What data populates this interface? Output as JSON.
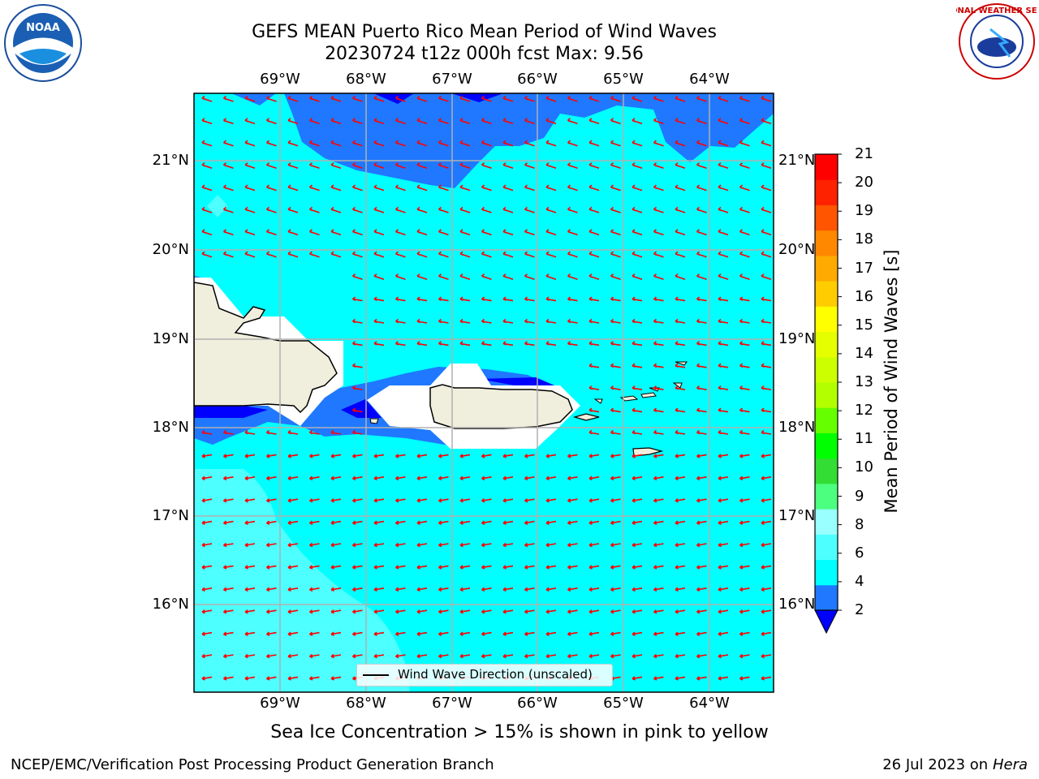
{
  "header": {
    "title": "GEFS MEAN Puerto Rico Mean Period of Wind Waves",
    "subtitle": "20230724 t12z 000h fcst   Max: 9.56"
  },
  "logos": {
    "noaa": {
      "text": "NOAA",
      "icon": "noaa-logo"
    },
    "nws": {
      "text": "NATIONAL WEATHER SERVICE",
      "icon": "nws-logo"
    }
  },
  "map": {
    "lon_labels": [
      "69°W",
      "68°W",
      "67°W",
      "66°W",
      "65°W",
      "64°W"
    ],
    "lat_labels": [
      "21°N",
      "20°N",
      "19°N",
      "18°N",
      "17°N",
      "16°N"
    ],
    "lon_range": [
      -70,
      -63.25
    ],
    "lat_range": [
      15.0,
      21.75
    ],
    "gridlines": true,
    "arrow_color": "#ff0000",
    "legend_label": "Wind Wave Direction (unscaled)"
  },
  "colorbar": {
    "title": "Mean Period of Wind Waves [s]",
    "ticks": [
      "2",
      "4",
      "6",
      "8",
      "9",
      "10",
      "11",
      "12",
      "13",
      "14",
      "15",
      "16",
      "17",
      "18",
      "19",
      "20",
      "21"
    ],
    "colors": [
      "#0000ff",
      "#1f78ff",
      "#00ffff",
      "#4dffff",
      "#99ffff",
      "#4cff7f",
      "#33dd33",
      "#00ff00",
      "#66ff00",
      "#b2ff00",
      "#ccff00",
      "#e6ff00",
      "#ffff00",
      "#ffcc00",
      "#ffaa00",
      "#ff8800",
      "#ff5500",
      "#ff2200",
      "#ff0000"
    ]
  },
  "note": "Sea Ice Concentration > 15% is shown in pink to yellow",
  "footer": {
    "left": "NCEP/EMC/Verification Post Processing Product Generation Branch",
    "date": "26 Jul 2023 on ",
    "machine": "Hera"
  }
}
